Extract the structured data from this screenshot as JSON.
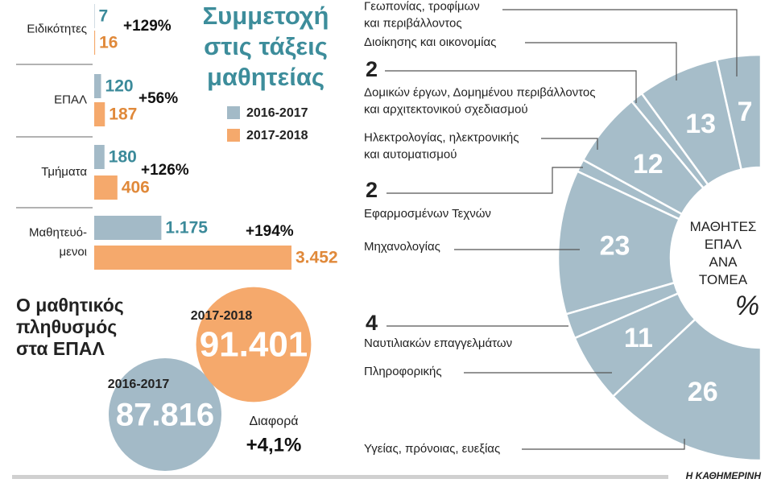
{
  "source": "Η ΚΑΘΗΜΕΡΙΝΗ",
  "chart_data": [
    {
      "type": "bar",
      "title": "Συμμετοχή\nστις τάξεις\nμαθητείας",
      "categories": [
        "Ειδικότητες",
        "ΕΠΑΛ",
        "Τμήματα",
        "Μαθητευό-\nμενοι"
      ],
      "series": [
        {
          "name": "2016-2017",
          "color": "#a3bac7",
          "label_color": "#3b8a9a",
          "values": [
            7,
            120,
            180,
            1175
          ],
          "value_labels": [
            "7",
            "120",
            "180",
            "1.175"
          ]
        },
        {
          "name": "2017-2018",
          "color": "#f5a96c",
          "label_color": "#e0893a",
          "values": [
            16,
            187,
            406,
            3452
          ],
          "value_labels": [
            "16",
            "187",
            "406",
            "3.452"
          ]
        }
      ],
      "annotations": [
        "+129%",
        "+56%",
        "+126%",
        "+194%"
      ]
    },
    {
      "type": "bubble",
      "title": "Ο μαθητικός\nπληθυσμός\nστα ΕΠΑΛ",
      "categories": [
        "2016-2017",
        "2017-2018"
      ],
      "values": [
        87816,
        91401
      ],
      "value_labels": [
        "87.816",
        "91.401"
      ],
      "colors": [
        "#a3bac7",
        "#f5a96c"
      ],
      "annotation_label": "Διαφορά",
      "annotation_value": "+4,1%"
    },
    {
      "type": "donut",
      "title": "ΜΑΘΗΤΕΣ\nΕΠΑΛ\nΑΝΑ\nΤΟΜΕΑ",
      "unit": "%",
      "color": "#a6bdc9",
      "categories": [
        "Γεωπονίας, τροφίμων\nκαι περιβάλλοντος",
        "Διοίκησης και οικονομίας",
        "Δομικών έργων, Δομημένου περιβάλλοντος\nκαι αρχιτεκτονικού σχεδιασμού",
        "Ηλεκτρολογίας, ηλεκτρονικής\nκαι αυτοματισμού",
        "Εφαρμοσμένων Τεχνών",
        "Μηχανολογίας",
        "Ναυτιλιακών επαγγελμάτων",
        "Πληροφορικής",
        "Υγείας, πρόνοιας, ευεξίας"
      ],
      "values": [
        7,
        13,
        2,
        12,
        2,
        23,
        4,
        11,
        26
      ]
    }
  ]
}
